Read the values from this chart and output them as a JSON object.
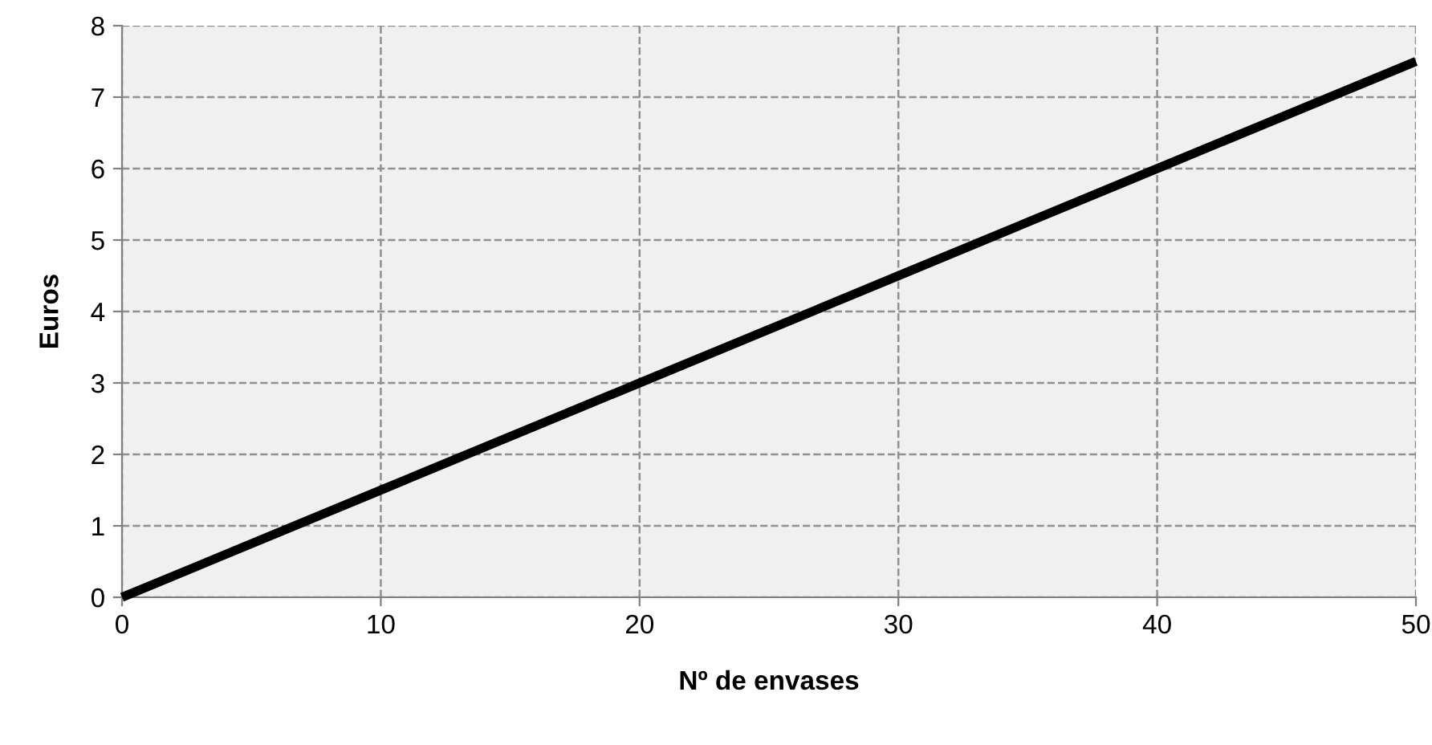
{
  "chart_data": {
    "type": "line",
    "xlabel": "Nº de envases",
    "ylabel": "Euros",
    "x": [
      0,
      10,
      20,
      30,
      40,
      50
    ],
    "series": [
      {
        "color": "#000000",
        "values": [
          0,
          1.5,
          3,
          4.5,
          6,
          7.5
        ]
      }
    ],
    "xlim": [
      0,
      50
    ],
    "ylim": [
      0,
      8
    ],
    "xticks": [
      0,
      10,
      20,
      30,
      40,
      50
    ],
    "yticks": [
      0,
      1,
      2,
      3,
      4,
      5,
      6,
      7,
      8
    ],
    "grid": true,
    "line_style": "solid"
  }
}
